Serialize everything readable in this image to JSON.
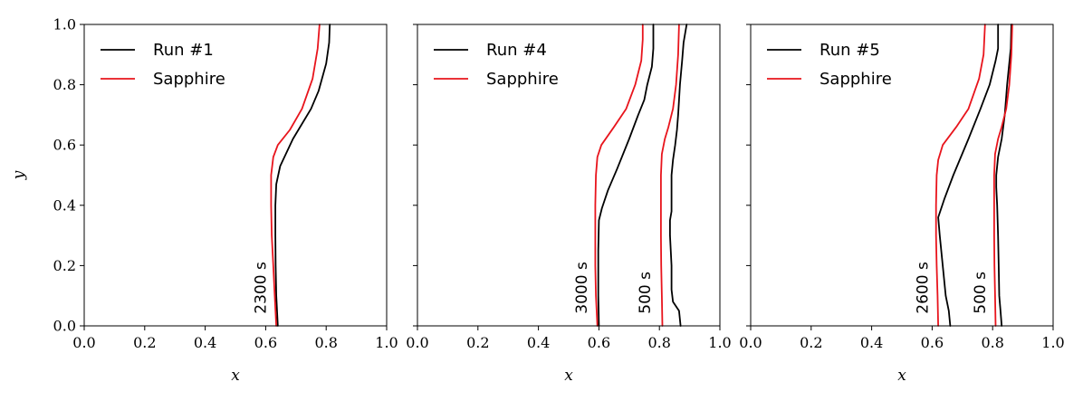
{
  "chart_data": [
    {
      "type": "line",
      "xlabel": "x",
      "ylabel": "y",
      "xlim": [
        0.0,
        1.0
      ],
      "ylim": [
        0.0,
        1.0
      ],
      "xticks": [
        "0.0",
        "0.2",
        "0.4",
        "0.6",
        "0.8",
        "1.0"
      ],
      "yticks": [
        "0.0",
        "0.2",
        "0.4",
        "0.6",
        "0.8",
        "1.0"
      ],
      "grid": false,
      "legend_position": "top-left",
      "series": [
        {
          "name": "Run #1",
          "color": "#000000",
          "curves": [
            [
              [
                0.64,
                0.0
              ],
              [
                0.635,
                0.1
              ],
              [
                0.633,
                0.2
              ],
              [
                0.632,
                0.3
              ],
              [
                0.632,
                0.4
              ],
              [
                0.635,
                0.47
              ],
              [
                0.648,
                0.53
              ],
              [
                0.69,
                0.62
              ],
              [
                0.75,
                0.72
              ],
              [
                0.775,
                0.78
              ],
              [
                0.8,
                0.87
              ],
              [
                0.81,
                0.94
              ],
              [
                0.812,
                1.0
              ]
            ]
          ]
        },
        {
          "name": "Sapphire",
          "color": "#e8141c",
          "curves": [
            [
              [
                0.635,
                0.0
              ],
              [
                0.63,
                0.1
              ],
              [
                0.625,
                0.2
              ],
              [
                0.62,
                0.3
              ],
              [
                0.618,
                0.4
              ],
              [
                0.618,
                0.5
              ],
              [
                0.625,
                0.56
              ],
              [
                0.64,
                0.6
              ],
              [
                0.68,
                0.65
              ],
              [
                0.72,
                0.72
              ],
              [
                0.755,
                0.82
              ],
              [
                0.772,
                0.92
              ],
              [
                0.778,
                1.0
              ]
            ]
          ]
        }
      ],
      "annotations": [
        {
          "text": "2300 s",
          "x": 0.6,
          "y": 0.04,
          "rotation": -90
        }
      ]
    },
    {
      "type": "line",
      "xlabel": "x",
      "xlim": [
        0.0,
        1.0
      ],
      "ylim": [
        0.0,
        1.0
      ],
      "xticks": [
        "0.0",
        "0.2",
        "0.4",
        "0.6",
        "0.8",
        "1.0"
      ],
      "grid": false,
      "legend_position": "top-left",
      "series": [
        {
          "name": "Run #4",
          "color": "#000000",
          "curves": [
            [
              [
                0.6,
                0.0
              ],
              [
                0.598,
                0.1
              ],
              [
                0.598,
                0.25
              ],
              [
                0.6,
                0.35
              ],
              [
                0.61,
                0.39
              ],
              [
                0.63,
                0.45
              ],
              [
                0.66,
                0.52
              ],
              [
                0.7,
                0.62
              ],
              [
                0.73,
                0.7
              ],
              [
                0.75,
                0.75
              ],
              [
                0.76,
                0.8
              ],
              [
                0.775,
                0.86
              ],
              [
                0.78,
                0.92
              ],
              [
                0.78,
                1.0
              ]
            ],
            [
              [
                0.87,
                0.0
              ],
              [
                0.865,
                0.05
              ],
              [
                0.845,
                0.08
              ],
              [
                0.84,
                0.12
              ],
              [
                0.84,
                0.2
              ],
              [
                0.835,
                0.3
              ],
              [
                0.835,
                0.35
              ],
              [
                0.84,
                0.38
              ],
              [
                0.84,
                0.5
              ],
              [
                0.845,
                0.55
              ],
              [
                0.852,
                0.6
              ],
              [
                0.858,
                0.65
              ],
              [
                0.862,
                0.7
              ],
              [
                0.868,
                0.8
              ],
              [
                0.875,
                0.88
              ],
              [
                0.88,
                0.94
              ],
              [
                0.89,
                1.0
              ]
            ]
          ]
        },
        {
          "name": "Sapphire",
          "color": "#e8141c",
          "curves": [
            [
              [
                0.595,
                0.0
              ],
              [
                0.59,
                0.1
              ],
              [
                0.588,
                0.2
              ],
              [
                0.588,
                0.3
              ],
              [
                0.588,
                0.4
              ],
              [
                0.59,
                0.5
              ],
              [
                0.595,
                0.56
              ],
              [
                0.608,
                0.6
              ],
              [
                0.65,
                0.66
              ],
              [
                0.69,
                0.72
              ],
              [
                0.72,
                0.8
              ],
              [
                0.74,
                0.88
              ],
              [
                0.745,
                0.95
              ],
              [
                0.745,
                1.0
              ]
            ],
            [
              [
                0.81,
                0.0
              ],
              [
                0.808,
                0.1
              ],
              [
                0.806,
                0.2
              ],
              [
                0.805,
                0.3
              ],
              [
                0.805,
                0.4
              ],
              [
                0.805,
                0.5
              ],
              [
                0.808,
                0.57
              ],
              [
                0.818,
                0.62
              ],
              [
                0.83,
                0.66
              ],
              [
                0.845,
                0.72
              ],
              [
                0.855,
                0.8
              ],
              [
                0.862,
                0.9
              ],
              [
                0.865,
                1.0
              ]
            ]
          ]
        }
      ],
      "annotations": [
        {
          "text": "3000 s",
          "x": 0.56,
          "y": 0.04,
          "rotation": -90
        },
        {
          "text": "500 s",
          "x": 0.77,
          "y": 0.04,
          "rotation": -90
        }
      ]
    },
    {
      "type": "line",
      "xlabel": "x",
      "xlim": [
        0.0,
        1.0
      ],
      "ylim": [
        0.0,
        1.0
      ],
      "xticks": [
        "0.0",
        "0.2",
        "0.4",
        "0.6",
        "0.8",
        "1.0"
      ],
      "grid": false,
      "legend_position": "top-left",
      "series": [
        {
          "name": "Run #5",
          "color": "#000000",
          "curves": [
            [
              [
                0.66,
                0.0
              ],
              [
                0.655,
                0.05
              ],
              [
                0.645,
                0.1
              ],
              [
                0.635,
                0.2
              ],
              [
                0.625,
                0.3
              ],
              [
                0.62,
                0.36
              ],
              [
                0.64,
                0.42
              ],
              [
                0.67,
                0.5
              ],
              [
                0.72,
                0.62
              ],
              [
                0.76,
                0.72
              ],
              [
                0.79,
                0.8
              ],
              [
                0.81,
                0.88
              ],
              [
                0.818,
                0.92
              ],
              [
                0.818,
                1.0
              ]
            ],
            [
              [
                0.83,
                0.0
              ],
              [
                0.826,
                0.05
              ],
              [
                0.822,
                0.1
              ],
              [
                0.82,
                0.2
              ],
              [
                0.818,
                0.3
              ],
              [
                0.815,
                0.4
              ],
              [
                0.812,
                0.46
              ],
              [
                0.812,
                0.5
              ],
              [
                0.818,
                0.56
              ],
              [
                0.83,
                0.62
              ],
              [
                0.84,
                0.7
              ],
              [
                0.848,
                0.8
              ],
              [
                0.86,
                0.92
              ],
              [
                0.862,
                1.0
              ]
            ]
          ]
        },
        {
          "name": "Sapphire",
          "color": "#e8141c",
          "curves": [
            [
              [
                0.62,
                0.0
              ],
              [
                0.618,
                0.1
              ],
              [
                0.615,
                0.2
              ],
              [
                0.613,
                0.3
              ],
              [
                0.613,
                0.4
              ],
              [
                0.615,
                0.5
              ],
              [
                0.62,
                0.55
              ],
              [
                0.635,
                0.6
              ],
              [
                0.68,
                0.66
              ],
              [
                0.72,
                0.72
              ],
              [
                0.755,
                0.82
              ],
              [
                0.77,
                0.9
              ],
              [
                0.775,
                1.0
              ]
            ],
            [
              [
                0.81,
                0.0
              ],
              [
                0.808,
                0.1
              ],
              [
                0.806,
                0.2
              ],
              [
                0.805,
                0.3
              ],
              [
                0.805,
                0.4
              ],
              [
                0.805,
                0.5
              ],
              [
                0.808,
                0.57
              ],
              [
                0.818,
                0.62
              ],
              [
                0.83,
                0.66
              ],
              [
                0.845,
                0.72
              ],
              [
                0.855,
                0.8
              ],
              [
                0.862,
                0.9
              ],
              [
                0.865,
                1.0
              ]
            ]
          ]
        }
      ],
      "annotations": [
        {
          "text": "2600 s",
          "x": 0.585,
          "y": 0.04,
          "rotation": -90
        },
        {
          "text": "500 s",
          "x": 0.775,
          "y": 0.04,
          "rotation": -90
        }
      ]
    }
  ]
}
